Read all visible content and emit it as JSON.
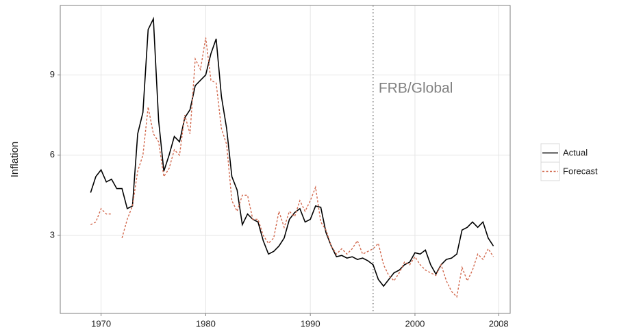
{
  "chart_data": {
    "type": "line",
    "y_label": "Inflation",
    "annotation": "FRB/Global",
    "vline": 1996,
    "x": [
      1969.0,
      1969.5,
      1970.0,
      1970.5,
      1971.0,
      1971.5,
      1972.0,
      1972.5,
      1973.0,
      1973.5,
      1974.0,
      1974.5,
      1975.0,
      1975.5,
      1976.0,
      1976.5,
      1977.0,
      1977.5,
      1978.0,
      1978.5,
      1979.0,
      1979.5,
      1980.0,
      1980.5,
      1981.0,
      1981.5,
      1982.0,
      1982.5,
      1983.0,
      1983.5,
      1984.0,
      1984.5,
      1985.0,
      1985.5,
      1986.0,
      1986.5,
      1987.0,
      1987.5,
      1988.0,
      1988.5,
      1989.0,
      1989.5,
      1990.0,
      1990.5,
      1991.0,
      1991.5,
      1992.0,
      1992.5,
      1993.0,
      1993.5,
      1994.0,
      1994.5,
      1995.0,
      1995.5,
      1996.0,
      1996.5,
      1997.0,
      1997.5,
      1998.0,
      1998.5,
      1999.0,
      1999.5,
      2000.0,
      2000.5,
      2001.0,
      2001.5,
      2002.0,
      2002.5,
      2003.0,
      2003.5,
      2004.0,
      2004.5,
      2005.0,
      2005.5,
      2006.0,
      2006.5,
      2007.0,
      2007.5
    ],
    "series": [
      {
        "name": "Actual",
        "color": "#000000",
        "dash": false,
        "values": [
          4.6,
          5.2,
          5.45,
          5.0,
          5.1,
          4.75,
          4.75,
          4.0,
          4.1,
          6.8,
          7.6,
          10.7,
          11.1,
          7.3,
          5.4,
          6.0,
          6.7,
          6.5,
          7.4,
          7.7,
          8.6,
          8.8,
          9.0,
          9.8,
          10.35,
          8.2,
          7.0,
          5.2,
          4.7,
          3.4,
          3.8,
          3.6,
          3.5,
          2.8,
          2.3,
          2.4,
          2.6,
          2.9,
          3.6,
          3.85,
          4.0,
          3.5,
          3.6,
          4.1,
          4.05,
          3.1,
          2.6,
          2.2,
          2.25,
          2.15,
          2.2,
          2.1,
          2.15,
          2.05,
          1.9,
          1.35,
          1.1,
          1.35,
          1.6,
          1.7,
          1.9,
          2.0,
          2.35,
          2.3,
          2.45,
          1.9,
          1.55,
          1.9,
          2.1,
          2.15,
          2.3,
          3.2,
          3.3,
          3.5,
          3.3,
          3.5,
          2.9,
          2.6
        ]
      },
      {
        "name": "Forecast",
        "color": "#d2694e",
        "dash": true,
        "values": [
          3.4,
          3.5,
          4.0,
          3.8,
          3.8,
          null,
          2.9,
          3.6,
          4.1,
          5.4,
          6.0,
          7.8,
          6.8,
          6.5,
          5.2,
          5.5,
          6.2,
          6.0,
          7.5,
          6.8,
          9.6,
          9.2,
          10.4,
          8.8,
          8.7,
          7.0,
          6.4,
          4.3,
          3.9,
          4.5,
          4.5,
          3.6,
          3.6,
          3.0,
          2.7,
          2.9,
          3.9,
          3.3,
          3.9,
          3.7,
          4.3,
          3.9,
          4.3,
          4.8,
          3.5,
          3.2,
          2.6,
          2.3,
          2.5,
          2.3,
          2.5,
          2.8,
          2.3,
          2.4,
          2.5,
          2.7,
          1.9,
          1.5,
          1.3,
          1.6,
          2.0,
          1.9,
          2.2,
          1.9,
          1.7,
          1.6,
          1.5,
          1.9,
          1.3,
          0.9,
          0.7,
          1.8,
          1.3,
          1.7,
          2.3,
          2.1,
          2.5,
          2.2
        ]
      }
    ],
    "xlim": [
      1966.1,
      2009.1
    ],
    "xticks": [
      1970,
      1980,
      1990,
      2000,
      2008
    ],
    "ylim": [
      0.08,
      11.6
    ],
    "yticks": [
      3,
      6,
      9
    ],
    "grid": true,
    "legend": "right"
  }
}
